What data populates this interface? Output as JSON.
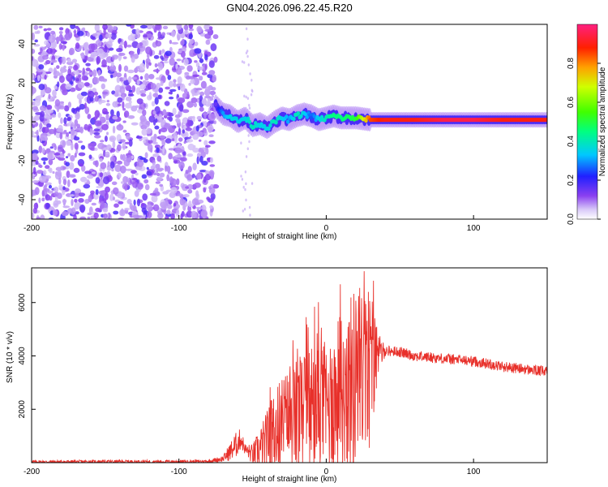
{
  "title": "GN04.2026.096.22.45.R20",
  "chart_data": [
    {
      "type": "heatmap",
      "name": "spectrogram",
      "xlabel": "Height of straight line (km)",
      "ylabel": "Frequency (Hz)",
      "xlim": [
        -200,
        150
      ],
      "ylim": [
        -50,
        50
      ],
      "xticks": [
        -200,
        -100,
        0,
        100
      ],
      "yticks": [
        -40,
        -20,
        0,
        20,
        40
      ],
      "noise_region_x": [
        -200,
        -75
      ],
      "signal_track": {
        "x": [
          -75,
          -70,
          -65,
          -60,
          -55,
          -50,
          -45,
          -40,
          -35,
          -30,
          -25,
          -20,
          -15,
          -10,
          -5,
          0,
          5,
          10,
          20,
          30,
          40,
          60,
          80,
          100,
          120,
          150
        ],
        "freq": [
          8,
          4,
          3,
          0,
          2,
          -2,
          -1,
          -3,
          0,
          2,
          1,
          3,
          4,
          3,
          1,
          2,
          3,
          2,
          2,
          1,
          1,
          1,
          1,
          1,
          1,
          1
        ],
        "amplitude": [
          0.15,
          0.3,
          0.35,
          0.35,
          0.35,
          0.4,
          0.35,
          0.35,
          0.4,
          0.35,
          0.3,
          0.4,
          0.35,
          0.25,
          0.35,
          0.4,
          0.45,
          0.45,
          0.5,
          0.85,
          0.9,
          0.9,
          0.95,
          0.95,
          0.9,
          0.9
        ]
      },
      "colorbar": {
        "label": "Normalized spectral amplitude",
        "range": [
          0,
          1
        ],
        "ticks": [
          0.0,
          0.2,
          0.4,
          0.6,
          0.8
        ]
      }
    },
    {
      "type": "line",
      "name": "snr",
      "xlabel": "Height of straight line (km)",
      "ylabel": "SNR (10 * v/v)",
      "xlim": [
        -200,
        150
      ],
      "ylim": [
        0,
        7300
      ],
      "xticks": [
        -200,
        -100,
        0,
        100
      ],
      "yticks": [
        2000,
        4000,
        6000
      ],
      "color": "#e8302a",
      "series": [
        {
          "name": "SNR",
          "x": [
            -200,
            -150,
            -100,
            -80,
            -70,
            -62,
            -58,
            -55,
            -50,
            -45,
            -40,
            -35,
            -30,
            -25,
            -20,
            -15,
            -10,
            -5,
            0,
            5,
            10,
            15,
            20,
            25,
            30,
            35,
            40,
            50,
            60,
            80,
            100,
            120,
            150
          ],
          "mean": [
            30,
            40,
            40,
            50,
            150,
            600,
            900,
            500,
            300,
            500,
            800,
            1200,
            1500,
            1600,
            1700,
            2000,
            2000,
            2100,
            2100,
            2400,
            2600,
            2900,
            3200,
            3300,
            3700,
            4000,
            4200,
            4150,
            4000,
            3900,
            3800,
            3600,
            3400
          ],
          "spread": [
            60,
            60,
            60,
            60,
            120,
            500,
            400,
            200,
            400,
            800,
            1200,
            1600,
            1800,
            2000,
            2200,
            2300,
            2500,
            2600,
            2400,
            2800,
            3000,
            3200,
            3600,
            3400,
            3200,
            900,
            200,
            200,
            200,
            200,
            200,
            200,
            200
          ]
        }
      ]
    }
  ]
}
